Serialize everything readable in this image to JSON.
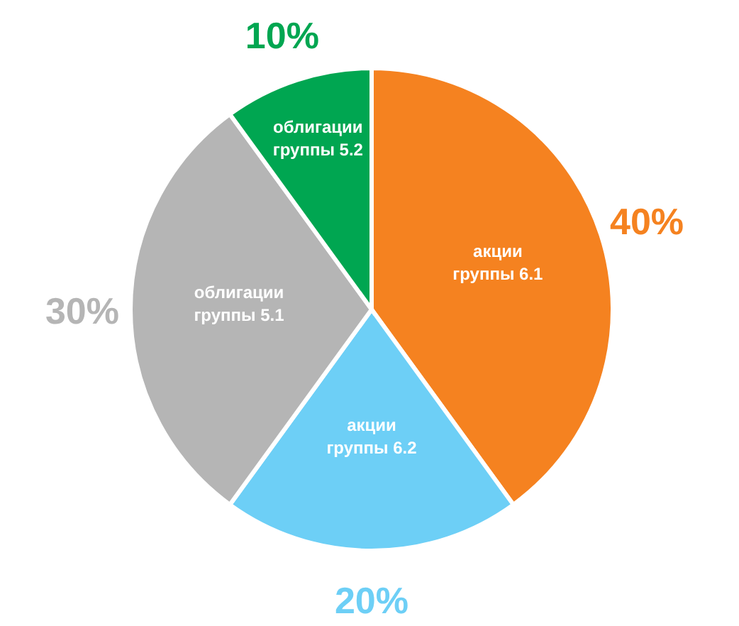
{
  "chart_data": {
    "type": "pie",
    "categories": [
      "акции группы 6.1",
      "акции группы 6.2",
      "облигации группы 5.1",
      "облигации группы 5.2"
    ],
    "values": [
      40,
      20,
      30,
      10
    ],
    "colors": [
      "#f58220",
      "#6dcff6",
      "#b5b5b5",
      "#00a651"
    ],
    "value_labels": [
      "40%",
      "20%",
      "30%",
      "10%"
    ]
  }
}
